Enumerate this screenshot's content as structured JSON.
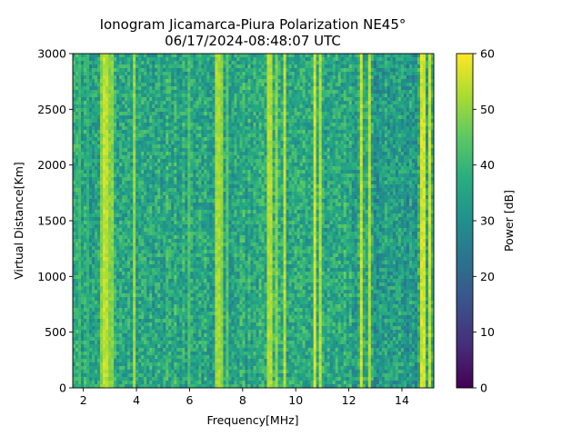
{
  "chart_data": {
    "type": "heatmap",
    "title_line1": "Ionogram Jicamarca-Piura Polarization NE45°",
    "title_line2": "06/17/2024-08:48:07 UTC",
    "xlabel": "Frequency[MHz]",
    "ylabel": "Virtual Distance[Km]",
    "colorbar_label": "Power [dB]",
    "colormap": "viridis",
    "xlim": [
      1.6,
      15.2
    ],
    "ylim": [
      0,
      3000
    ],
    "clim": [
      0,
      60
    ],
    "x_ticks": [
      "2",
      "4",
      "6",
      "8",
      "10",
      "12",
      "14"
    ],
    "y_ticks": [
      "0",
      "500",
      "1000",
      "1500",
      "2000",
      "2500",
      "3000"
    ],
    "c_ticks": [
      "0",
      "10",
      "20",
      "30",
      "40",
      "50",
      "60"
    ],
    "background_power_db": 36,
    "noise_spread_db": 8,
    "strong_bands": [
      {
        "freq_mhz": 1.85,
        "power_db": 44
      },
      {
        "freq_mhz": 2.15,
        "power_db": 42
      },
      {
        "freq_mhz": 2.65,
        "power_db": 52
      },
      {
        "freq_mhz": 2.8,
        "power_db": 58
      },
      {
        "freq_mhz": 2.92,
        "power_db": 57
      },
      {
        "freq_mhz": 3.05,
        "power_db": 52
      },
      {
        "freq_mhz": 3.9,
        "power_db": 54
      },
      {
        "freq_mhz": 5.95,
        "power_db": 46
      },
      {
        "freq_mhz": 7.05,
        "power_db": 55
      },
      {
        "freq_mhz": 7.2,
        "power_db": 52
      },
      {
        "freq_mhz": 7.45,
        "power_db": 47
      },
      {
        "freq_mhz": 9.0,
        "power_db": 56
      },
      {
        "freq_mhz": 9.3,
        "power_db": 52
      },
      {
        "freq_mhz": 9.6,
        "power_db": 57
      },
      {
        "freq_mhz": 10.7,
        "power_db": 59
      },
      {
        "freq_mhz": 10.9,
        "power_db": 56
      },
      {
        "freq_mhz": 12.5,
        "power_db": 58
      },
      {
        "freq_mhz": 12.78,
        "power_db": 56
      },
      {
        "freq_mhz": 14.8,
        "power_db": 59
      },
      {
        "freq_mhz": 15.05,
        "power_db": 58
      }
    ],
    "quiet_region_mhz": [
      12.9,
      14.6
    ]
  }
}
